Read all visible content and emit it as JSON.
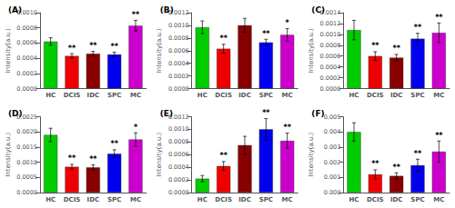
{
  "chart_data": [
    {
      "type": "bar",
      "title": "(A)",
      "ylabel": "Intensity(a.u.)",
      "categories": [
        "HC",
        "DCIS",
        "IDC",
        "SPC",
        "MC"
      ],
      "values": [
        0.00062,
        0.00043,
        0.00046,
        0.00045,
        0.00083
      ],
      "errors": [
        5e-05,
        3e-05,
        3e-05,
        3e-05,
        7e-05
      ],
      "colors": [
        "#00cc00",
        "#ee0000",
        "#880000",
        "#0000ee",
        "#cc00cc"
      ],
      "annotations": [
        {
          "category": "DCIS",
          "text": "**"
        },
        {
          "category": "IDC",
          "text": "**"
        },
        {
          "category": "SPC",
          "text": "**"
        },
        {
          "category": "MC",
          "text": "**"
        }
      ],
      "ylim": [
        0,
        0.001
      ],
      "yticks": [
        {
          "value": 0,
          "label": "0.0000"
        },
        0.0002,
        0.0004,
        0.0006,
        0.0008,
        {
          "value": 0.001,
          "label": "0.0010"
        }
      ],
      "grid": false
    },
    {
      "type": "bar",
      "title": "(B)",
      "ylabel": "Intensity(a.u.)",
      "categories": [
        "HC",
        "DCIS",
        "IDC",
        "SPC",
        "MC"
      ],
      "values": [
        0.00097,
        0.00063,
        0.001,
        0.00073,
        0.00085
      ],
      "errors": [
        0.0001,
        7e-05,
        0.00011,
        5e-05,
        0.0001
      ],
      "colors": [
        "#00cc00",
        "#ee0000",
        "#880000",
        "#0000ee",
        "#cc00cc"
      ],
      "annotations": [
        {
          "category": "DCIS",
          "text": "**"
        },
        {
          "category": "SPC",
          "text": "**"
        },
        {
          "category": "MC",
          "text": "*"
        }
      ],
      "ylim": [
        0,
        0.0012
      ],
      "yticks": [
        {
          "value": 0,
          "label": "0.0000"
        },
        0.0002,
        0.0004,
        0.0006,
        0.0008,
        {
          "value": 0.001,
          "label": "0.0010"
        },
        0.0012
      ],
      "grid": false
    },
    {
      "type": "bar",
      "title": "(C)",
      "ylabel": "Intensity(a.u.)",
      "categories": [
        "HC",
        "DCIS",
        "IDC",
        "SPC",
        "MC"
      ],
      "values": [
        0.00108,
        0.0006,
        0.00057,
        0.00092,
        0.00103
      ],
      "errors": [
        0.00018,
        8e-05,
        6e-05,
        0.0001,
        0.00018
      ],
      "colors": [
        "#00cc00",
        "#ee0000",
        "#880000",
        "#0000ee",
        "#cc00cc"
      ],
      "annotations": [
        {
          "category": "DCIS",
          "text": "**"
        },
        {
          "category": "IDC",
          "text": "**"
        },
        {
          "category": "SPC",
          "text": "**"
        },
        {
          "category": "MC",
          "text": "**"
        }
      ],
      "ylim": [
        0,
        0.0014
      ],
      "yticks": [
        {
          "value": 0,
          "label": "0.0000"
        },
        0.0002,
        0.0004,
        0.0006,
        0.0008,
        {
          "value": 0.001,
          "label": "0.0010"
        },
        0.0012,
        0.0014
      ],
      "grid": false
    },
    {
      "type": "bar",
      "title": "(D)",
      "ylabel": "Intensity(a.u.)",
      "categories": [
        "HC",
        "DCIS",
        "IDC",
        "SPC",
        "MC"
      ],
      "values": [
        0.0019,
        0.00085,
        0.00083,
        0.00128,
        0.00175
      ],
      "errors": [
        0.00022,
        8e-05,
        8e-05,
        0.00013,
        0.00022
      ],
      "colors": [
        "#00cc00",
        "#ee0000",
        "#880000",
        "#0000ee",
        "#cc00cc"
      ],
      "annotations": [
        {
          "category": "DCIS",
          "text": "**"
        },
        {
          "category": "IDC",
          "text": "**"
        },
        {
          "category": "SPC",
          "text": "**"
        },
        {
          "category": "MC",
          "text": "*"
        }
      ],
      "ylim": [
        0,
        0.0025
      ],
      "yticks": [
        {
          "value": 0,
          "label": "0.0000"
        },
        0.0005,
        {
          "value": 0.001,
          "label": "0.0010"
        },
        0.0015,
        {
          "value": 0.002,
          "label": "0.0020"
        },
        0.0025
      ],
      "grid": false
    },
    {
      "type": "bar",
      "title": "(E)",
      "ylabel": "Intensity(a.u.)",
      "categories": [
        "HC",
        "DCIS",
        "IDC",
        "SPC",
        "MC"
      ],
      "values": [
        0.00022,
        0.00042,
        0.00075,
        0.001,
        0.00082
      ],
      "errors": [
        5e-05,
        7e-05,
        0.00014,
        0.00017,
        0.00012
      ],
      "colors": [
        "#00cc00",
        "#ee0000",
        "#880000",
        "#0000ee",
        "#cc00cc"
      ],
      "annotations": [
        {
          "category": "DCIS",
          "text": "**"
        },
        {
          "category": "SPC",
          "text": "**"
        },
        {
          "category": "MC",
          "text": "**"
        }
      ],
      "ylim": [
        0,
        0.0012
      ],
      "yticks": [
        {
          "value": 0,
          "label": "0.0000"
        },
        0.0002,
        0.0004,
        0.0006,
        0.0008,
        {
          "value": 0.001,
          "label": "0.0010"
        },
        0.0012
      ],
      "grid": false
    },
    {
      "type": "bar",
      "title": "(F)",
      "ylabel": "Intensity(a.u.)",
      "categories": [
        "HC",
        "DCIS",
        "IDC",
        "SPC",
        "MC"
      ],
      "values": [
        0.004,
        0.0012,
        0.0011,
        0.0018,
        0.0027
      ],
      "errors": [
        0.0006,
        0.0003,
        0.0002,
        0.0004,
        0.0007
      ],
      "colors": [
        "#00cc00",
        "#ee0000",
        "#880000",
        "#0000ee",
        "#cc00cc"
      ],
      "annotations": [
        {
          "category": "DCIS",
          "text": "**"
        },
        {
          "category": "IDC",
          "text": "**"
        },
        {
          "category": "SPC",
          "text": "**"
        },
        {
          "category": "MC",
          "text": "**"
        }
      ],
      "ylim": [
        0,
        0.005
      ],
      "yticks": [
        {
          "value": 0,
          "label": "0.000"
        },
        0.001,
        0.002,
        0.003,
        0.004,
        0.005
      ],
      "grid": false
    }
  ]
}
